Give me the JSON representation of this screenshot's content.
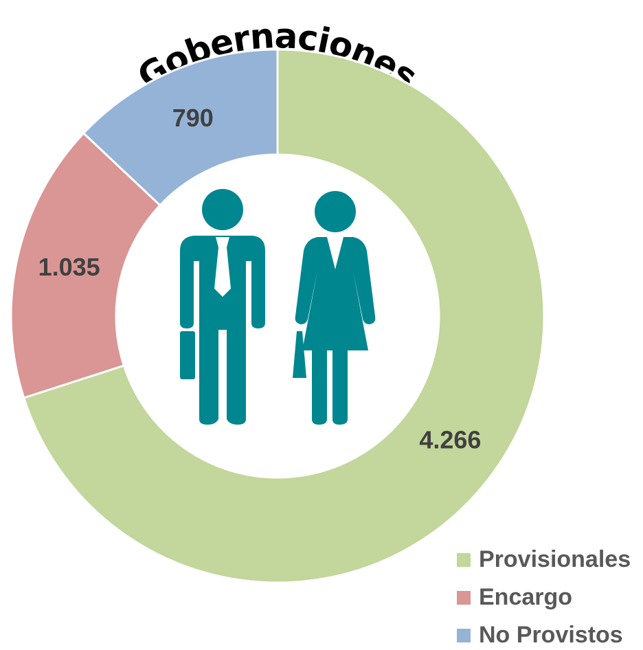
{
  "chart_data": {
    "type": "donut",
    "title": "Gobernaciones",
    "categories": [
      "Provisionales",
      "Encargo",
      "No Provistos"
    ],
    "values": [
      4266,
      1035,
      790
    ],
    "value_labels": [
      "4.266",
      "1.035",
      "790"
    ],
    "colors": [
      "#c3d69b",
      "#d99694",
      "#95b3d7"
    ],
    "legend": "bottom-right"
  }
}
